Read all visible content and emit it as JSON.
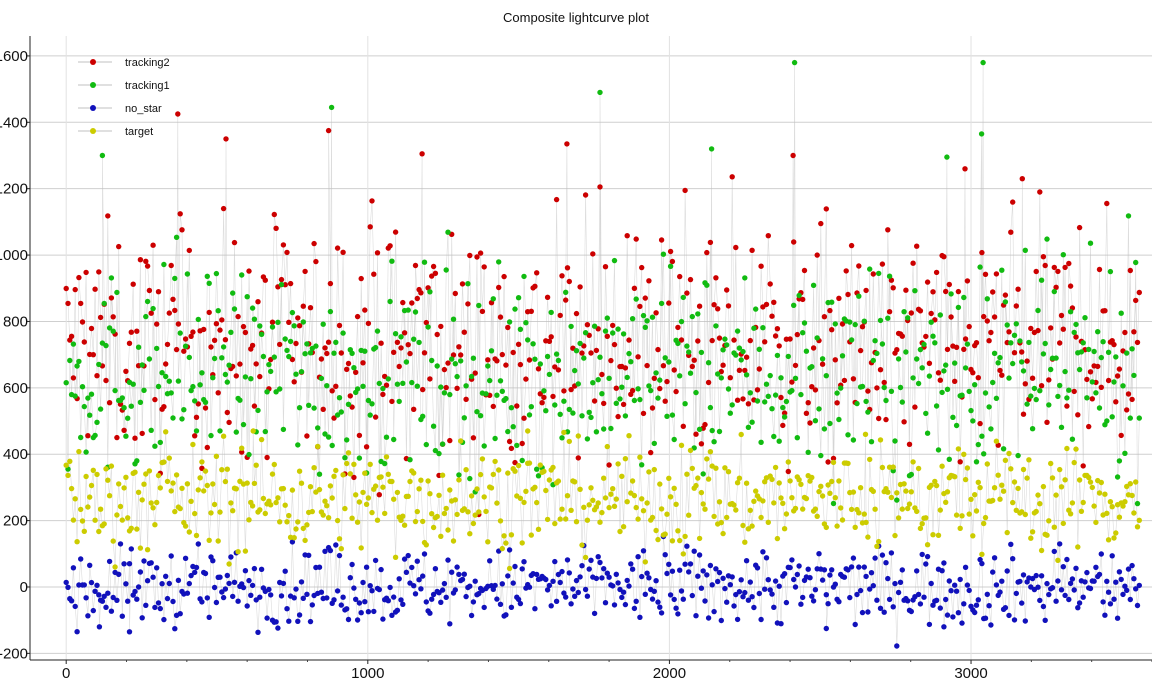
{
  "chart_data": {
    "type": "line",
    "title": "Composite lightcurve plot",
    "xlabel": "",
    "ylabel": "",
    "xlim": [
      -120,
      3600
    ],
    "ylim": [
      -220,
      1660
    ],
    "xticks": [
      0,
      1000,
      2000,
      3000
    ],
    "yticks": [
      -200,
      0,
      200,
      400,
      600,
      800,
      1000,
      1200,
      1400,
      1600
    ],
    "grid": true,
    "legend_position": "top-left",
    "x_range": [
      0,
      3560
    ],
    "n_points": 3560,
    "series": [
      {
        "name": "tracking2",
        "color": "#cc0000",
        "draw_order": 1,
        "typical_range": [
          450,
          1000
        ],
        "spikes": [
          [
            370,
            1425
          ],
          [
            530,
            1350
          ],
          [
            870,
            1375
          ],
          [
            1180,
            1305
          ],
          [
            1660,
            1335
          ],
          [
            2410,
            1300
          ],
          [
            2980,
            1260
          ],
          [
            3170,
            1230
          ]
        ]
      },
      {
        "name": "tracking1",
        "color": "#11bb11",
        "draw_order": 2,
        "typical_range": [
          400,
          880
        ],
        "spikes": [
          [
            120,
            1300
          ],
          [
            880,
            1445
          ],
          [
            1770,
            1490
          ],
          [
            2140,
            1320
          ],
          [
            2415,
            1580
          ],
          [
            3040,
            1580
          ],
          [
            3035,
            1365
          ],
          [
            2920,
            1295
          ]
        ]
      },
      {
        "name": "no_star",
        "color": "#1111bb",
        "draw_order": 3,
        "typical_range": [
          -90,
          90
        ],
        "spikes": [
          [
            210,
            -135
          ],
          [
            2520,
            -125
          ],
          [
            2910,
            -120
          ],
          [
            110,
            -120
          ]
        ]
      },
      {
        "name": "target",
        "color": "#cccc00",
        "draw_order": 4,
        "typical_range": [
          140,
          390
        ],
        "spikes": [
          [
            620,
            470
          ],
          [
            1530,
            470
          ],
          [
            2650,
            460
          ]
        ]
      }
    ],
    "connecting_line_color": "#c0c0c0"
  }
}
